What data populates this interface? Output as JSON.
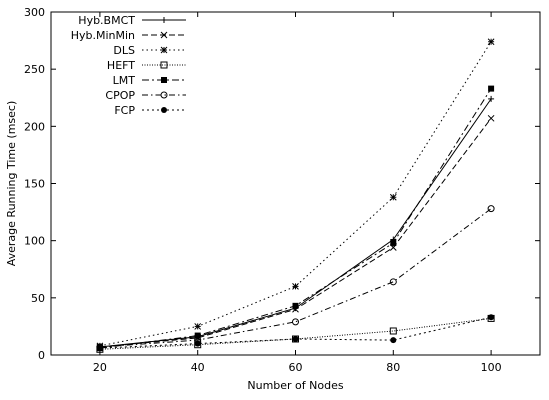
{
  "chart_data": {
    "type": "line",
    "title": "",
    "xlabel": "Number of Nodes",
    "ylabel": "Average Running Time (msec)",
    "x": [
      20,
      40,
      60,
      80,
      100
    ],
    "xlim": [
      10,
      110
    ],
    "ylim": [
      0,
      300
    ],
    "xticks": [
      20,
      40,
      60,
      80,
      100
    ],
    "yticks": [
      0,
      50,
      100,
      150,
      200,
      250,
      300
    ],
    "grid": false,
    "legend_position": "top-left",
    "series": [
      {
        "name": "Hyb.BMCT",
        "marker": "plus",
        "dash": "",
        "values": [
          7,
          16,
          41,
          101,
          224
        ]
      },
      {
        "name": "Hyb.MinMin",
        "marker": "cross",
        "dash": "6,3",
        "values": [
          7,
          15,
          40,
          94,
          207
        ]
      },
      {
        "name": "DLS",
        "marker": "star",
        "dash": "1.5,3",
        "values": [
          8,
          25,
          60,
          138,
          274
        ]
      },
      {
        "name": "HEFT",
        "marker": "square-open",
        "dash": "1,1.5",
        "values": [
          5,
          9,
          14,
          21,
          32
        ]
      },
      {
        "name": "LMT",
        "marker": "square-filled",
        "dash": "7,3,2,3",
        "values": [
          6,
          17,
          43,
          98,
          233
        ]
      },
      {
        "name": "CPOP",
        "marker": "circle-open",
        "dash": "6,3,1.5,3",
        "values": [
          7,
          13,
          29,
          64,
          128
        ]
      },
      {
        "name": "FCP",
        "marker": "circle-filled",
        "dash": "2,3",
        "values": [
          6,
          10,
          14,
          13,
          33
        ]
      }
    ]
  }
}
